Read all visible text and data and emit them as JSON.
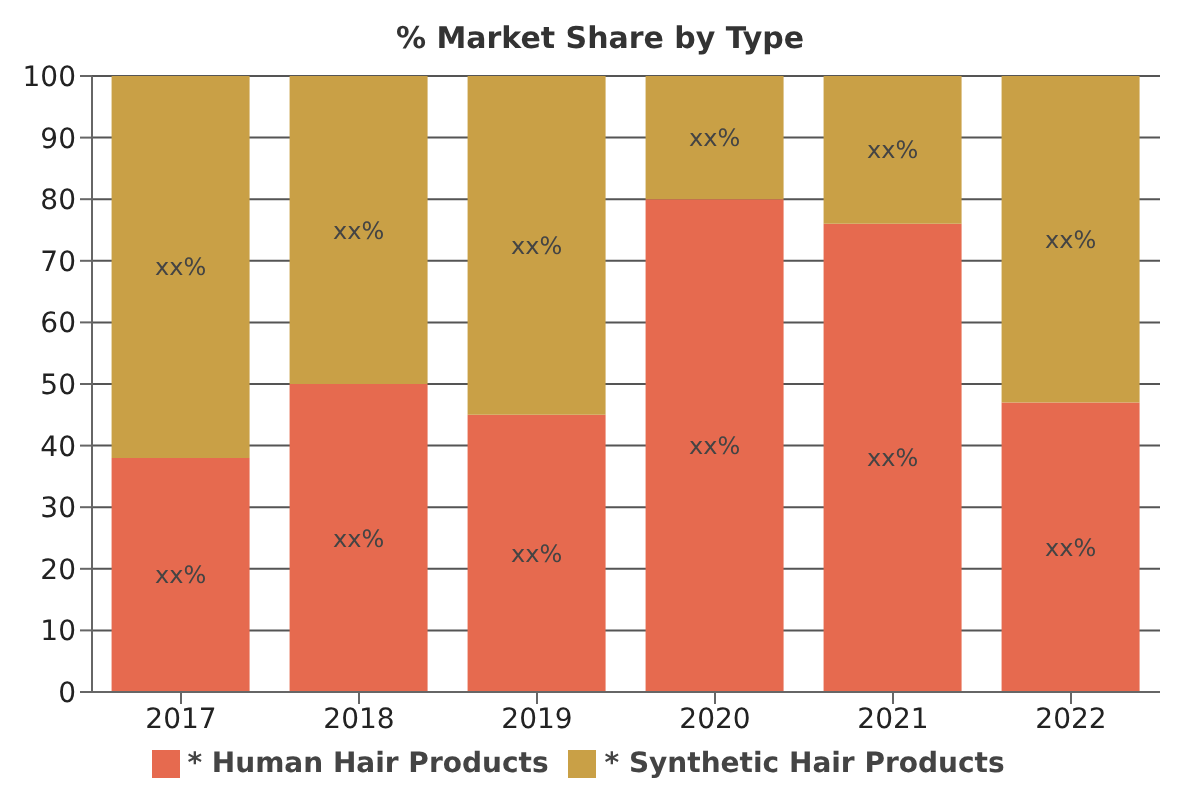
{
  "chart_data": {
    "type": "bar",
    "title": "% Market Share by Type",
    "stacked": true,
    "categories": [
      "2017",
      "2018",
      "2019",
      "2020",
      "2021",
      "2022"
    ],
    "series": [
      {
        "name": "* Human Hair Products",
        "color": "#e66a4f",
        "values": [
          38,
          50,
          45,
          80,
          76,
          47
        ],
        "value_labels": [
          "xx%",
          "xx%",
          "xx%",
          "xx%",
          "xx%",
          "xx%"
        ]
      },
      {
        "name": "* Synthetic Hair Products",
        "color": "#c9a046",
        "values": [
          62,
          50,
          55,
          20,
          24,
          53
        ],
        "value_labels": [
          "xx%",
          "xx%",
          "xx%",
          "xx%",
          "xx%",
          "xx%"
        ]
      }
    ],
    "ylim": [
      0,
      100
    ],
    "yticks": [
      0,
      10,
      20,
      30,
      40,
      50,
      60,
      70,
      80,
      90,
      100
    ],
    "grid": "y",
    "legend": "bottom"
  }
}
